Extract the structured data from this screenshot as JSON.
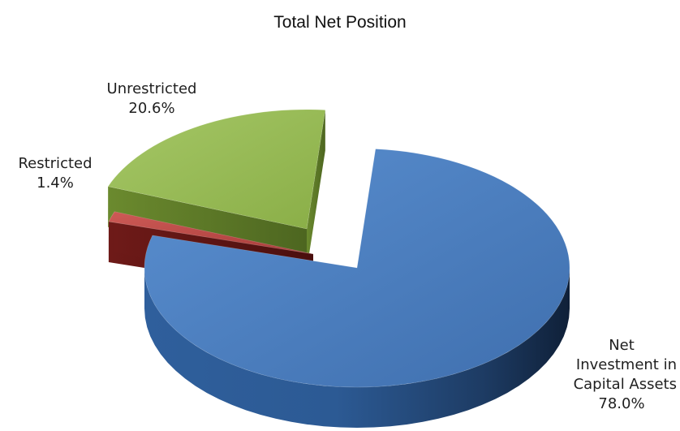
{
  "chart_data": {
    "type": "pie",
    "title": "Total Net Position",
    "three_d": true,
    "exploded": true,
    "legend": "none",
    "slices": [
      {
        "label_lines": [
          "Net",
          "Investment in",
          "Capital Assets"
        ],
        "value_label": "78.0%",
        "value": 78.0,
        "color": "#4a7ebb"
      },
      {
        "label_lines": [
          "Restricted"
        ],
        "value_label": "1.4%",
        "value": 1.4,
        "color": "#be4b48"
      },
      {
        "label_lines": [
          "Unrestricted"
        ],
        "value_label": "20.6%",
        "value": 20.6,
        "color": "#98b954"
      }
    ]
  }
}
